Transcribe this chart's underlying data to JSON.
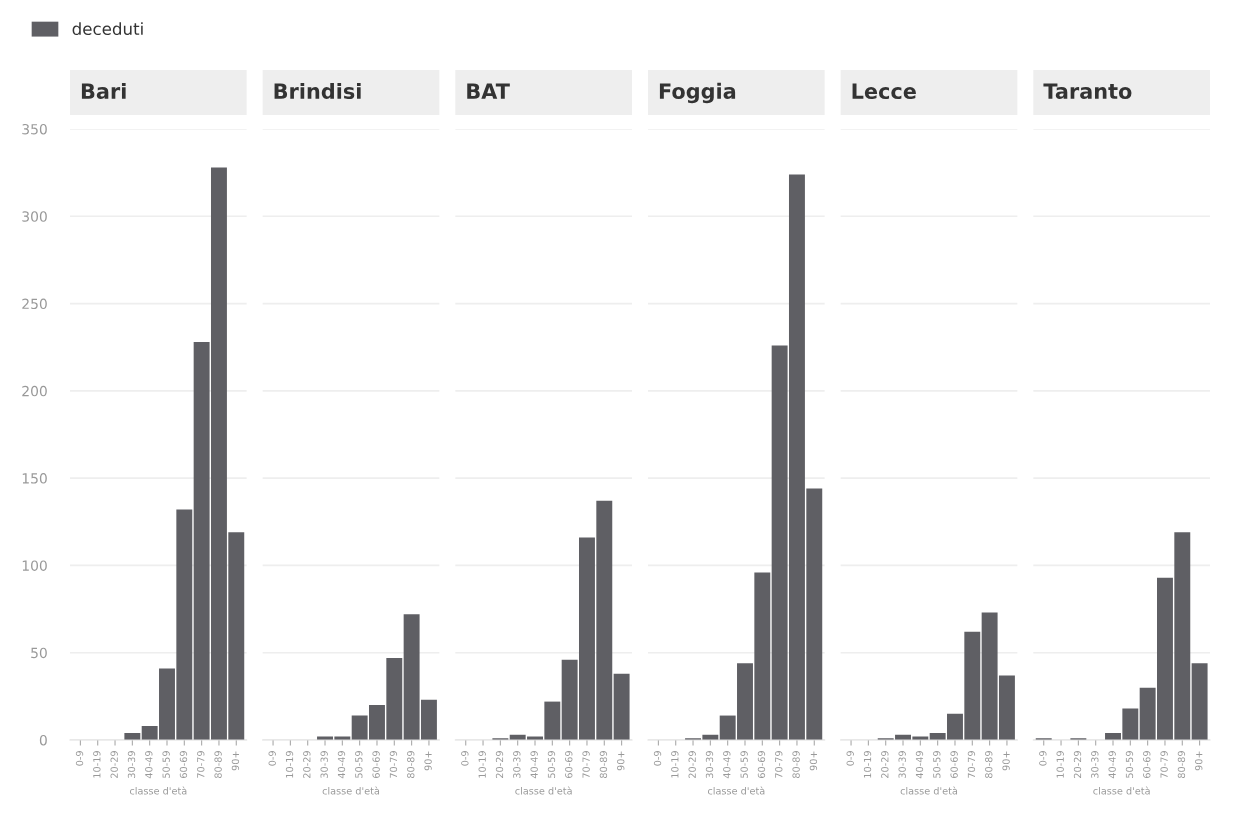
{
  "chart_data": [
    {
      "type": "bar",
      "title": "Bari",
      "xlabel": "classe d'età",
      "categories": [
        "0-9",
        "10-19",
        "20-29",
        "30-39",
        "40-49",
        "50-59",
        "60-69",
        "70-79",
        "80-89",
        "90+"
      ],
      "series": [
        {
          "name": "deceduti",
          "color": "#5f5f64",
          "values": [
            0,
            0,
            0,
            4,
            8,
            41,
            132,
            228,
            328,
            119
          ]
        }
      ],
      "ylim": [
        0,
        350
      ],
      "yticks": [
        0,
        50,
        100,
        150,
        200,
        250,
        300,
        350
      ],
      "grid": "y",
      "legend": "top left"
    },
    {
      "type": "bar",
      "title": "Brindisi",
      "xlabel": "classe d'età",
      "categories": [
        "0-9",
        "10-19",
        "20-29",
        "30-39",
        "40-49",
        "50-59",
        "60-69",
        "70-79",
        "80-89",
        "90+"
      ],
      "series": [
        {
          "color": "#5f5f64",
          "values": [
            0,
            0,
            0,
            2,
            2,
            14,
            20,
            47,
            72,
            23
          ]
        }
      ],
      "ylim": [
        0,
        350
      ],
      "yticks": [
        0,
        50,
        100,
        150,
        200,
        250,
        300,
        350
      ],
      "grid": "y",
      "tick_labels": "x"
    },
    {
      "type": "bar",
      "title": "BAT",
      "xlabel": "classe d'età",
      "categories": [
        "0-9",
        "10-19",
        "20-29",
        "30-39",
        "40-49",
        "50-59",
        "60-69",
        "70-79",
        "80-89",
        "90+"
      ],
      "series": [
        {
          "color": "#5f5f64",
          "values": [
            0,
            0,
            1,
            3,
            2,
            22,
            46,
            116,
            137,
            38
          ]
        }
      ],
      "ylim": [
        0,
        350
      ],
      "yticks": [
        0,
        50,
        100,
        150,
        200,
        250,
        300,
        350
      ],
      "grid": "y",
      "tick_labels": "x"
    },
    {
      "type": "bar",
      "title": "Foggia",
      "xlabel": "classe d'età",
      "categories": [
        "0-9",
        "10-19",
        "20-29",
        "30-39",
        "40-49",
        "50-59",
        "60-69",
        "70-79",
        "80-89",
        "90+"
      ],
      "series": [
        {
          "color": "#5f5f64",
          "values": [
            0,
            0,
            1,
            3,
            14,
            44,
            96,
            226,
            324,
            144
          ]
        }
      ],
      "ylim": [
        0,
        350
      ],
      "yticks": [
        0,
        50,
        100,
        150,
        200,
        250,
        300,
        350
      ],
      "grid": "y",
      "tick_labels": "x"
    },
    {
      "type": "bar",
      "title": "Lecce",
      "xlabel": "classe d'età",
      "categories": [
        "0-9",
        "10-19",
        "20-29",
        "30-39",
        "40-49",
        "50-59",
        "60-69",
        "70-79",
        "80-89",
        "90+"
      ],
      "series": [
        {
          "color": "#5f5f64",
          "values": [
            0,
            0,
            1,
            3,
            2,
            4,
            15,
            62,
            73,
            37
          ]
        }
      ],
      "ylim": [
        0,
        350
      ],
      "yticks": [
        0,
        50,
        100,
        150,
        200,
        250,
        300,
        350
      ],
      "grid": "y",
      "tick_labels": "x"
    },
    {
      "type": "bar",
      "title": "Taranto",
      "xlabel": "classe d'età",
      "categories": [
        "0-9",
        "10-19",
        "20-29",
        "30-39",
        "40-49",
        "50-59",
        "60-69",
        "70-79",
        "80-89",
        "90+"
      ],
      "series": [
        {
          "color": "#5f5f64",
          "values": [
            1,
            0,
            1,
            0,
            4,
            18,
            30,
            93,
            119,
            44
          ]
        }
      ],
      "ylim": [
        0,
        350
      ],
      "yticks": [
        0,
        50,
        100,
        150,
        200,
        250,
        300,
        350
      ],
      "grid": "y",
      "tick_labels": "x"
    }
  ]
}
